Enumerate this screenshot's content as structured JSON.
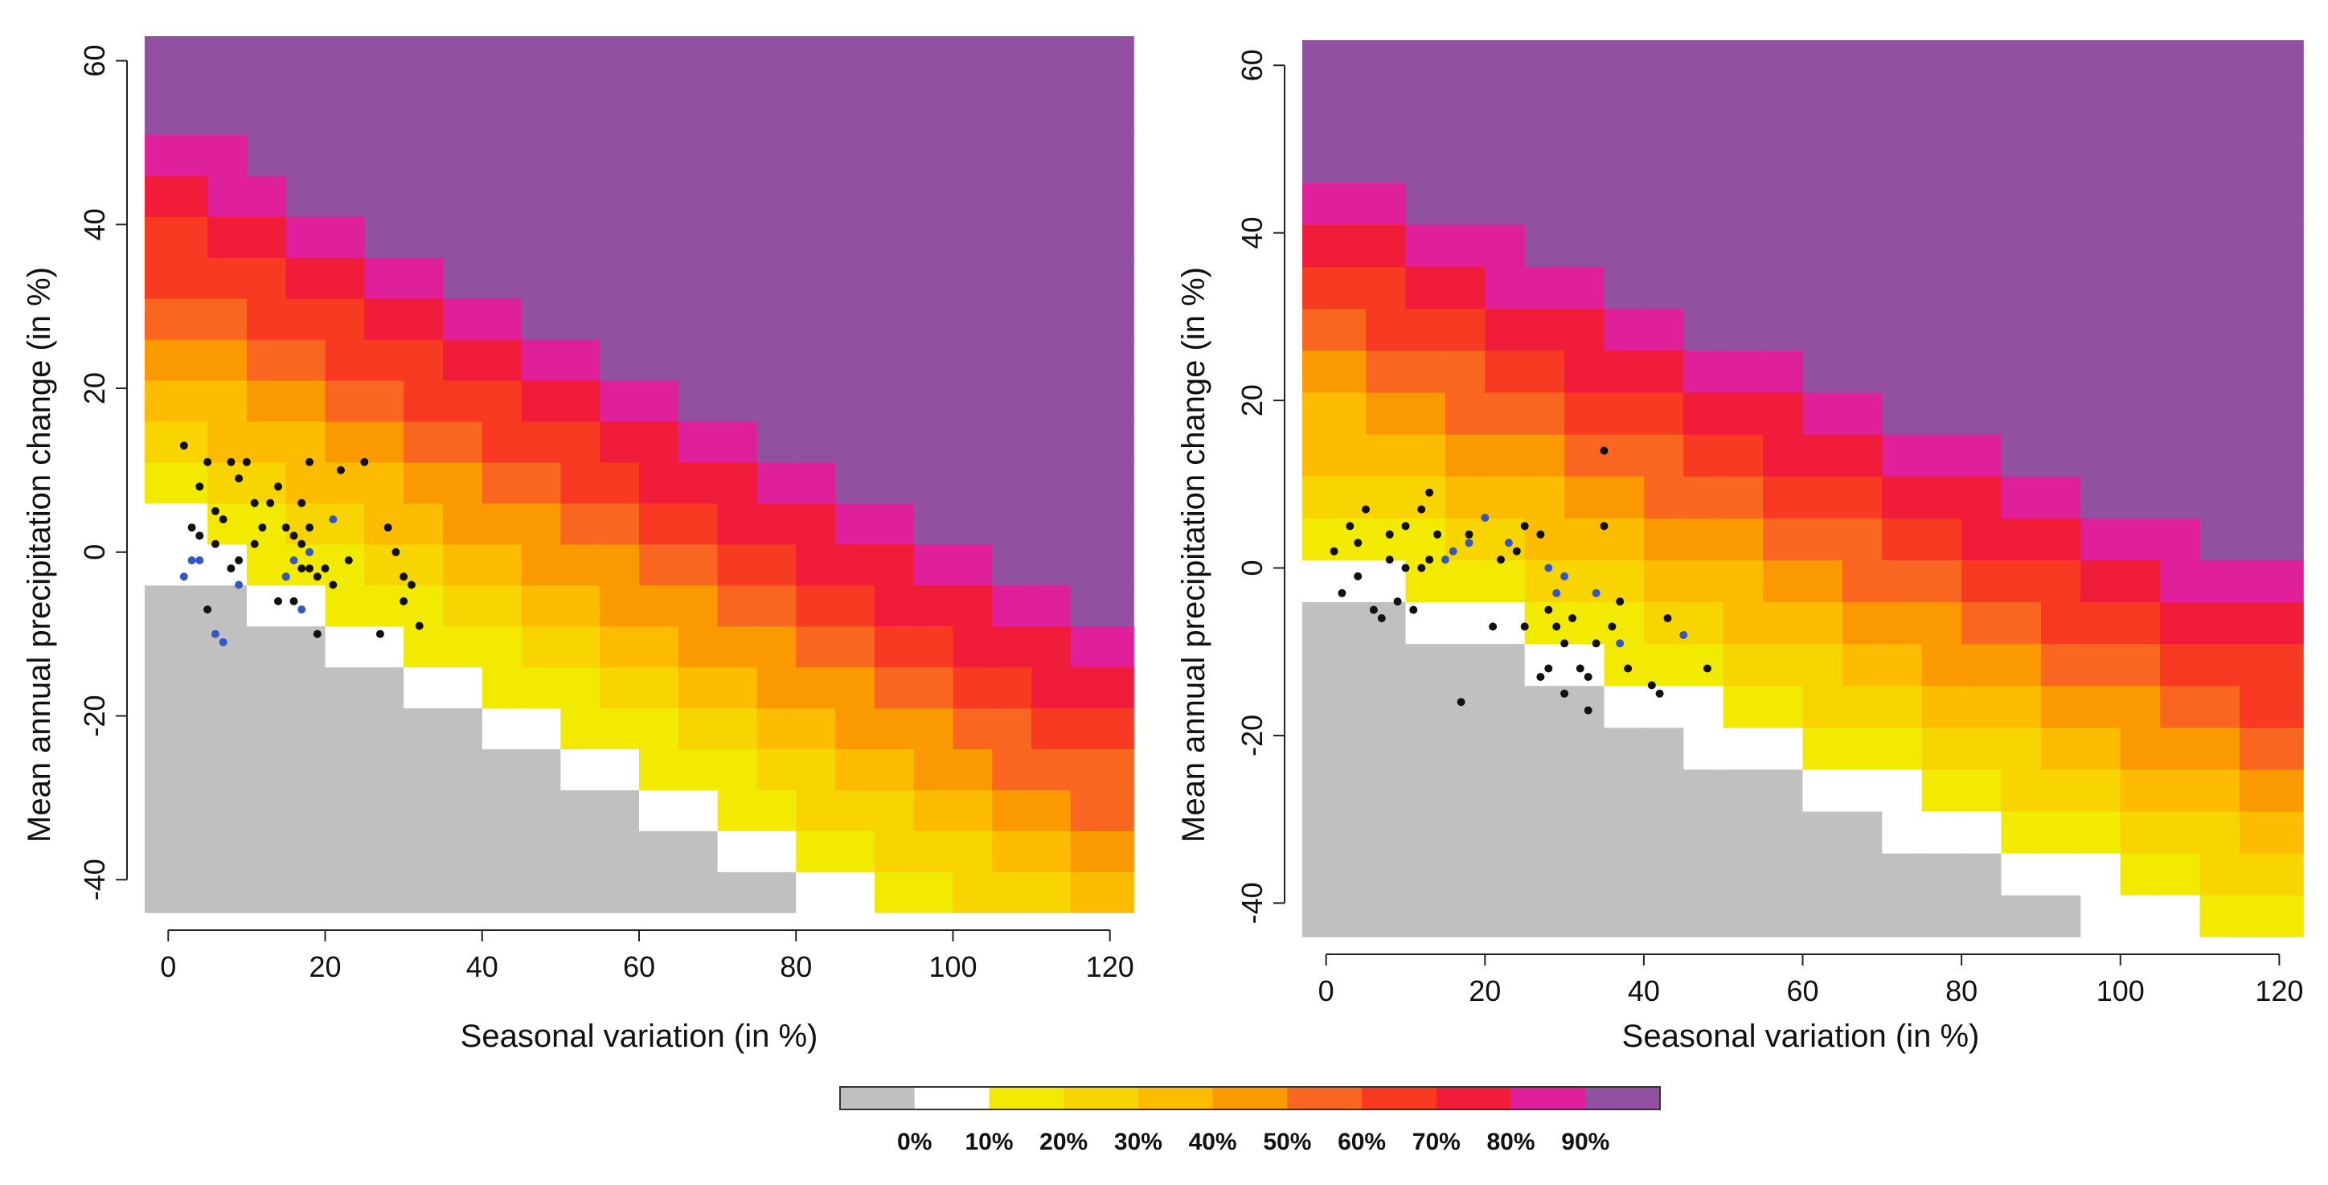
{
  "chart_data": [
    {
      "type": "heatmap",
      "name": "left-panel",
      "xlabel": "Seasonal variation (in %)",
      "ylabel": "Mean annual precipitation change (in %)",
      "xlim": [
        -3,
        123
      ],
      "ylim": [
        -44,
        63
      ],
      "xticks": [
        0,
        20,
        40,
        60,
        80,
        100,
        120
      ],
      "yticks": [
        -40,
        -20,
        0,
        20,
        40,
        60
      ],
      "x_cell_edges": [
        0,
        5,
        10,
        15,
        20,
        25,
        30,
        35,
        40,
        45,
        50,
        55,
        60,
        65,
        70,
        75,
        80,
        85,
        90,
        95,
        100,
        105,
        110,
        115,
        120
      ],
      "y_cell_edges": [
        -44,
        -39,
        -34,
        -29,
        -24,
        -19,
        -14,
        -9,
        -4,
        1,
        6,
        11,
        16,
        21,
        26,
        31,
        36,
        41,
        46,
        51,
        56,
        61
      ],
      "class_rule": "class = clamp(floor((0.19*x + 0.37*y + 2.6) / 2.2), 0, 10)",
      "points_black": [
        [
          2,
          13
        ],
        [
          4,
          8
        ],
        [
          5,
          11
        ],
        [
          6,
          5
        ],
        [
          7,
          4
        ],
        [
          8,
          11
        ],
        [
          9,
          9
        ],
        [
          10,
          11
        ],
        [
          4,
          2
        ],
        [
          6,
          1
        ],
        [
          8,
          -2
        ],
        [
          9,
          -1
        ],
        [
          11,
          6
        ],
        [
          12,
          3
        ],
        [
          13,
          6
        ],
        [
          14,
          8
        ],
        [
          14,
          -6
        ],
        [
          15,
          3
        ],
        [
          15,
          -3
        ],
        [
          16,
          -6
        ],
        [
          17,
          6
        ],
        [
          17,
          1
        ],
        [
          17,
          -2
        ],
        [
          18,
          11
        ],
        [
          18,
          3
        ],
        [
          18,
          -2
        ],
        [
          19,
          -3
        ],
        [
          19,
          -10
        ],
        [
          20,
          -2
        ],
        [
          21,
          -4
        ],
        [
          22,
          10
        ],
        [
          23,
          -1
        ],
        [
          25,
          11
        ],
        [
          27,
          -10
        ],
        [
          28,
          3
        ],
        [
          29,
          0
        ],
        [
          30,
          -3
        ],
        [
          30,
          -6
        ],
        [
          31,
          -4
        ],
        [
          32,
          -9
        ],
        [
          5,
          -7
        ],
        [
          3,
          3
        ],
        [
          11,
          1
        ],
        [
          16,
          2
        ]
      ],
      "points_blue": [
        [
          2,
          -3
        ],
        [
          3,
          -1
        ],
        [
          4,
          -1
        ],
        [
          6,
          -10
        ],
        [
          7,
          -11
        ],
        [
          9,
          -4
        ],
        [
          15,
          -3
        ],
        [
          16,
          -1
        ],
        [
          17,
          -7
        ],
        [
          18,
          0
        ],
        [
          21,
          4
        ]
      ]
    },
    {
      "type": "heatmap",
      "name": "right-panel",
      "xlabel": "Seasonal variation (in %)",
      "ylabel": "Mean annual precipitation change (in %)",
      "xlim": [
        -3,
        123
      ],
      "ylim": [
        -44,
        63
      ],
      "xticks": [
        0,
        20,
        40,
        60,
        80,
        100,
        120
      ],
      "yticks": [
        -40,
        -20,
        0,
        20,
        40,
        60
      ],
      "x_cell_edges": [
        0,
        5,
        10,
        15,
        20,
        25,
        30,
        35,
        40,
        45,
        50,
        55,
        60,
        65,
        70,
        75,
        80,
        85,
        90,
        95,
        100,
        105,
        110,
        115,
        120
      ],
      "y_cell_edges": [
        -44,
        -39,
        -34,
        -29,
        -24,
        -19,
        -14,
        -9,
        -4,
        1,
        6,
        11,
        16,
        21,
        26,
        31,
        36,
        41,
        46,
        51,
        56,
        61
      ],
      "class_rule": "class = clamp(floor((0.11*x + 0.27*y + 2.1) / 1.5), 0, 10)",
      "points_black": [
        [
          1,
          2
        ],
        [
          2,
          -3
        ],
        [
          3,
          5
        ],
        [
          4,
          -1
        ],
        [
          4,
          3
        ],
        [
          5,
          7
        ],
        [
          6,
          -5
        ],
        [
          7,
          -6
        ],
        [
          8,
          1
        ],
        [
          8,
          4
        ],
        [
          9,
          -4
        ],
        [
          10,
          5
        ],
        [
          11,
          -5
        ],
        [
          12,
          0
        ],
        [
          12,
          7
        ],
        [
          13,
          1
        ],
        [
          13,
          9
        ],
        [
          14,
          4
        ],
        [
          17,
          -16
        ],
        [
          18,
          4
        ],
        [
          21,
          -7
        ],
        [
          22,
          1
        ],
        [
          24,
          2
        ],
        [
          25,
          -7
        ],
        [
          27,
          4
        ],
        [
          27,
          -13
        ],
        [
          28,
          -12
        ],
        [
          28,
          -5
        ],
        [
          29,
          -7
        ],
        [
          30,
          -9
        ],
        [
          30,
          -15
        ],
        [
          31,
          -6
        ],
        [
          32,
          -12
        ],
        [
          33,
          -13
        ],
        [
          33,
          -17
        ],
        [
          34,
          -9
        ],
        [
          35,
          5
        ],
        [
          35,
          14
        ],
        [
          36,
          -7
        ],
        [
          37,
          -4
        ],
        [
          38,
          -12
        ],
        [
          41,
          -14
        ],
        [
          42,
          -15
        ],
        [
          43,
          -6
        ],
        [
          48,
          -12
        ],
        [
          10,
          0
        ],
        [
          25,
          5
        ]
      ],
      "points_blue": [
        [
          15,
          1
        ],
        [
          16,
          2
        ],
        [
          18,
          3
        ],
        [
          20,
          6
        ],
        [
          23,
          3
        ],
        [
          28,
          0
        ],
        [
          29,
          -3
        ],
        [
          30,
          -1
        ],
        [
          34,
          -3
        ],
        [
          37,
          -9
        ],
        [
          45,
          -8
        ]
      ]
    }
  ],
  "legend": {
    "colors": [
      "#c0c0c0",
      "#ffffff",
      "#f2ea00",
      "#f8d400",
      "#fdbc00",
      "#fa9a00",
      "#f86620",
      "#f83a22",
      "#f01c3a",
      "#e0209a",
      "#9250a0"
    ],
    "labels": [
      "0%",
      "10%",
      "20%",
      "30%",
      "40%",
      "50%",
      "60%",
      "70%",
      "80%",
      "90%"
    ]
  },
  "colors": {
    "point_black": "#111111",
    "point_blue": "#3358c4",
    "text": "#111111"
  }
}
